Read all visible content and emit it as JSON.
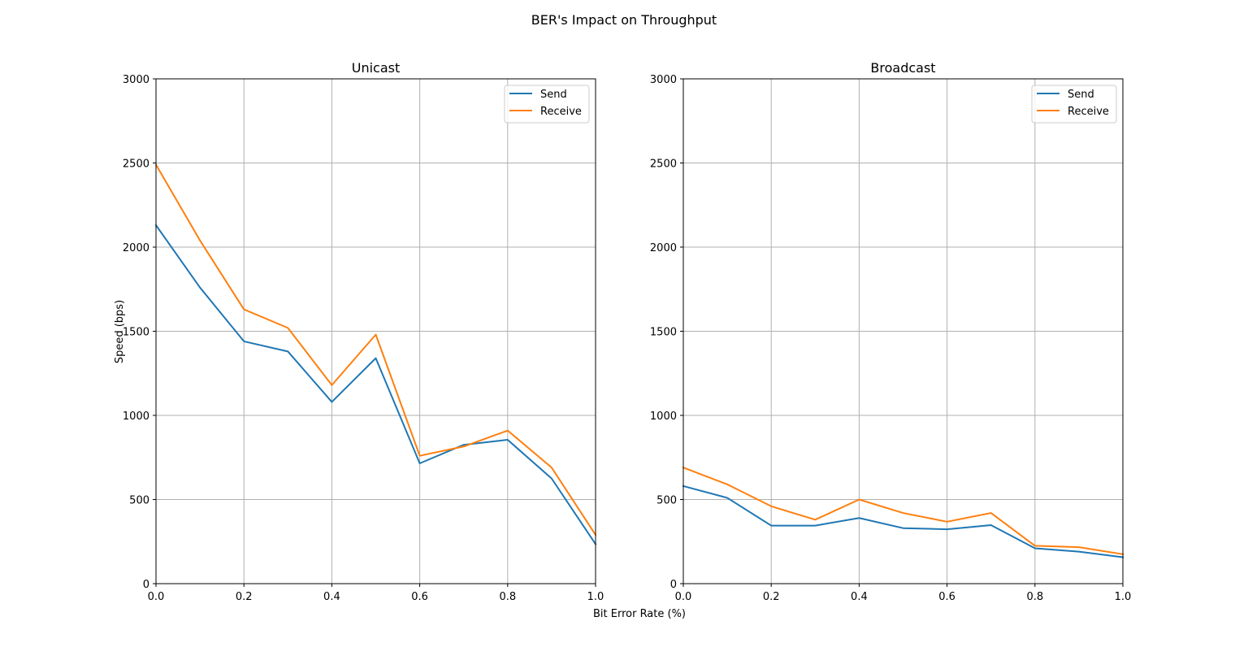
{
  "figure": {
    "title": "BER's Impact on Throughput",
    "xlabel": "Bit Error Rate (%)",
    "ylabel": "Speed (bps)"
  },
  "colors": {
    "send": "#1f77b4",
    "receive": "#ff7f0e"
  },
  "chart_data": [
    {
      "type": "line",
      "title": "Unicast",
      "xlabel": "Bit Error Rate (%)",
      "ylabel": "Speed (bps)",
      "xlim": [
        0,
        1
      ],
      "ylim": [
        0,
        3000
      ],
      "xticks": [
        "0.0",
        "0.2",
        "0.4",
        "0.6",
        "0.8",
        "1.0"
      ],
      "yticks": [
        "0",
        "500",
        "1000",
        "1500",
        "2000",
        "2500",
        "3000"
      ],
      "grid": true,
      "legend_position": "top-right",
      "x": [
        0.0,
        0.1,
        0.2,
        0.3,
        0.4,
        0.5,
        0.6,
        0.7,
        0.8,
        0.9,
        1.0
      ],
      "series": [
        {
          "name": "Send",
          "color": "#1f77b4",
          "values": [
            2130,
            1760,
            1440,
            1380,
            1080,
            1340,
            715,
            825,
            855,
            625,
            235
          ]
        },
        {
          "name": "Receive",
          "color": "#ff7f0e",
          "values": [
            2490,
            2040,
            1630,
            1520,
            1180,
            1480,
            760,
            815,
            910,
            690,
            290
          ]
        }
      ]
    },
    {
      "type": "line",
      "title": "Broadcast",
      "xlabel": "Bit Error Rate (%)",
      "ylabel": "",
      "xlim": [
        0,
        1
      ],
      "ylim": [
        0,
        3000
      ],
      "xticks": [
        "0.0",
        "0.2",
        "0.4",
        "0.6",
        "0.8",
        "1.0"
      ],
      "yticks": [
        "0",
        "500",
        "1000",
        "1500",
        "2000",
        "2500",
        "3000"
      ],
      "grid": true,
      "legend_position": "top-right",
      "x": [
        0.0,
        0.1,
        0.2,
        0.3,
        0.4,
        0.5,
        0.6,
        0.7,
        0.8,
        0.9,
        1.0
      ],
      "series": [
        {
          "name": "Send",
          "color": "#1f77b4",
          "values": [
            580,
            510,
            345,
            345,
            390,
            330,
            323,
            348,
            210,
            190,
            157
          ]
        },
        {
          "name": "Receive",
          "color": "#ff7f0e",
          "values": [
            690,
            590,
            460,
            380,
            500,
            420,
            368,
            420,
            225,
            217,
            175
          ]
        }
      ]
    }
  ]
}
